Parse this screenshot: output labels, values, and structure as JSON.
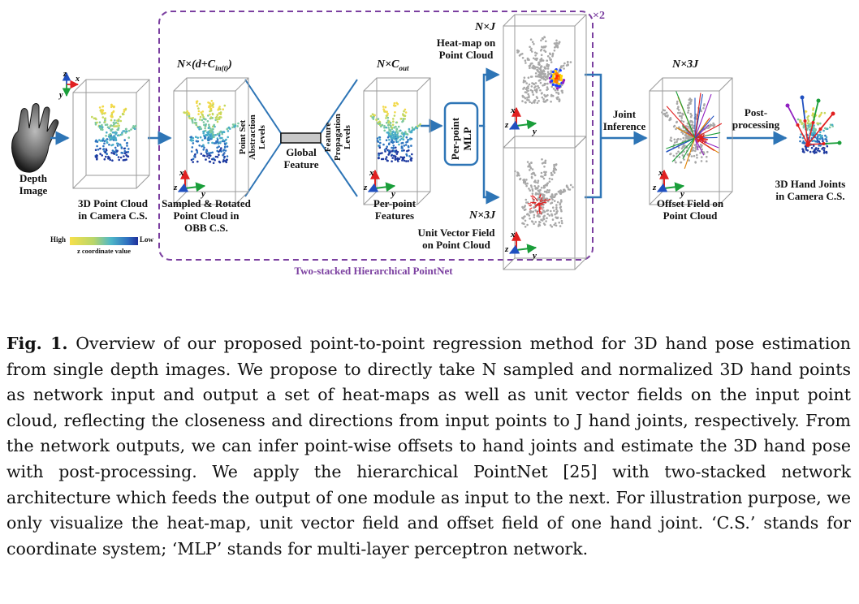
{
  "figure": {
    "depth_image_label": "Depth\nImage",
    "point_cloud_camera_label": "3D Point Cloud\nin Camera C.S.",
    "sampled_label": "Sampled & Rotated\nPoint Cloud in\nOBB C.S.",
    "colorbar": {
      "high": "High",
      "low": "Low",
      "caption": "z coordinate value"
    },
    "dim_input": "N×(d+C",
    "dim_input_sub": "in(t)",
    "dim_input_close": ")",
    "set_abstraction": "Point Set\nAbstraction\nLevels",
    "global_feature": "Global\nFeature",
    "feature_propagation": "Feature\nPropagation\nLevels",
    "dim_cout": "N×C",
    "dim_cout_sub": "out",
    "per_point_features": "Per-point\nFeatures",
    "mlp_label": "Per-point\nMLP",
    "dim_nj": "N×J",
    "heatmap_label": "Heat-map on\nPoint Cloud",
    "dim_n3j_a": "N×3J",
    "unit_vector_label": "Unit Vector Field\non Point Cloud",
    "times2": "×2",
    "two_stacked": "Two-stacked Hierarchical PointNet",
    "joint_inference": "Joint\nInference",
    "dim_n3j_b": "N×3J",
    "offset_label": "Offset Field on\nPoint Cloud",
    "postprocessing": "Post-\nprocessing",
    "hand_joints_label": "3D Hand Joints\nin Camera C.S.",
    "axes": {
      "x": "x",
      "y": "y",
      "z": "z"
    },
    "colors": {
      "arrow_blue": "#2e75b6",
      "purple": "#7b3fa0",
      "red": "#e02020",
      "green": "#1a9e3a"
    }
  },
  "caption": {
    "label": "Fig. 1.",
    "text": " Overview of our proposed point-to-point regression method for 3D hand pose estimation from single depth images. We propose to directly take N sampled and normalized 3D hand points as network input and output a set of heat-maps as well as unit vector fields on the input point cloud, reflecting the closeness and directions from input points to J hand joints, respectively. From the network outputs, we can infer point-wise offsets to hand joints and estimate the 3D hand pose with post-processing. We apply the hierarchical PointNet [25] with two-stacked network architecture which feeds the output of one module as input to the next. For illustration purpose, we only visualize the heat-map, unit vector field and offset field of one hand joint. ‘C.S.’ stands for coordinate system; ‘MLP’ stands for multi-layer perceptron network."
  }
}
